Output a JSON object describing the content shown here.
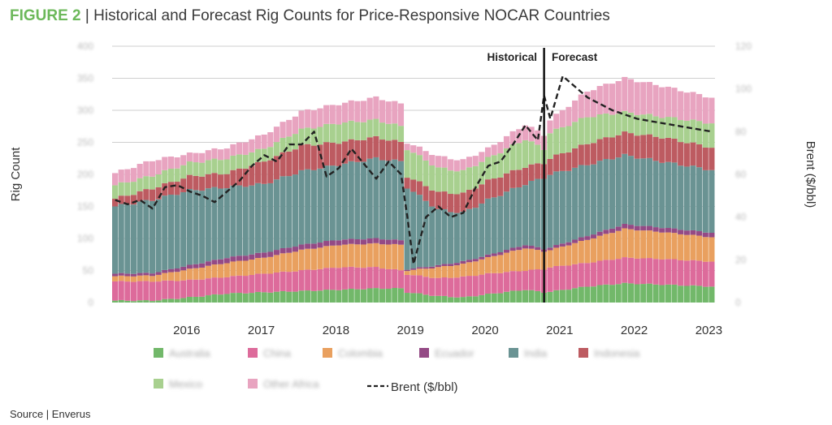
{
  "title": {
    "figure_label": "FIGURE 2",
    "separator": " | ",
    "text": "Historical and Forecast Rig Counts for Price-Responsive NOCAR Countries"
  },
  "source": "Source | Enverus",
  "chart_data": {
    "type": "bar",
    "stacked": true,
    "title": "Historical and Forecast Rig Counts for Price-Responsive NOCAR Countries",
    "xlabel": "",
    "ylabel": "Rig Count",
    "y2label": "Brent ($/bbl)",
    "ylim": [
      0,
      400
    ],
    "y2lim": [
      0,
      120
    ],
    "yticks": [
      0,
      50,
      100,
      150,
      200,
      250,
      300,
      350,
      400
    ],
    "y2ticks": [
      0,
      20,
      40,
      60,
      80,
      100,
      120
    ],
    "grid": true,
    "legend_position": "bottom",
    "x_tick_labels": [
      "2016",
      "2017",
      "2018",
      "2019",
      "2020",
      "2021",
      "2022",
      "2023"
    ],
    "period": {
      "start": "2015-07",
      "frequency": "monthly",
      "count": 97
    },
    "annotations": [
      {
        "text": "Historical",
        "side": "left-of-divider"
      },
      {
        "text": "Forecast",
        "side": "right-of-divider"
      }
    ],
    "divider_month_index": 69,
    "series": [
      {
        "name": "Australia",
        "color": "#72b86a"
      },
      {
        "name": "China",
        "color": "#dd6b9b"
      },
      {
        "name": "Colombia",
        "color": "#e9a05f"
      },
      {
        "name": "Ecuador",
        "color": "#944a85"
      },
      {
        "name": "India",
        "color": "#6a9393"
      },
      {
        "name": "Indonesia",
        "color": "#bd5b61"
      },
      {
        "name": "Mexico",
        "color": "#a8d08f"
      },
      {
        "name": "Other Africa",
        "color": "#e8a4c0"
      }
    ],
    "keypoints": {
      "comment": "cumulative stack tops (rig count) at selected month indices; values between are interpolated",
      "idx": [
        0,
        6,
        12,
        18,
        24,
        30,
        36,
        42,
        46,
        47,
        52,
        56,
        60,
        66,
        69,
        70,
        76,
        82,
        88,
        96
      ],
      "Australia": [
        3,
        3,
        8,
        14,
        16,
        18,
        20,
        22,
        22,
        16,
        10,
        8,
        13,
        20,
        16,
        17,
        25,
        30,
        28,
        25
      ],
      "China": [
        33,
        33,
        35,
        40,
        45,
        50,
        55,
        55,
        50,
        44,
        38,
        40,
        45,
        50,
        52,
        55,
        62,
        70,
        68,
        64
      ],
      "Colombia": [
        41,
        42,
        52,
        62,
        70,
        82,
        90,
        92,
        90,
        50,
        55,
        60,
        70,
        85,
        80,
        82,
        98,
        115,
        110,
        102
      ],
      "Ecuador": [
        45,
        46,
        58,
        70,
        78,
        90,
        98,
        100,
        97,
        52,
        58,
        64,
        74,
        90,
        84,
        86,
        104,
        122,
        117,
        109
      ],
      "India": [
        150,
        160,
        175,
        180,
        185,
        205,
        215,
        225,
        220,
        180,
        145,
        140,
        160,
        185,
        195,
        200,
        215,
        230,
        220,
        207
      ],
      "Indonesia": [
        162,
        178,
        197,
        202,
        220,
        245,
        250,
        258,
        250,
        197,
        172,
        170,
        190,
        212,
        218,
        225,
        248,
        265,
        258,
        242
      ],
      "Mexico": [
        183,
        198,
        218,
        225,
        240,
        270,
        280,
        285,
        275,
        240,
        210,
        205,
        225,
        255,
        240,
        265,
        290,
        297,
        290,
        280
      ],
      "Other Africa": [
        202,
        222,
        232,
        242,
        262,
        298,
        310,
        320,
        310,
        250,
        228,
        222,
        240,
        278,
        262,
        285,
        330,
        350,
        338,
        320
      ]
    },
    "brent": {
      "name": "Brent ($/bbl)",
      "style": "dashed",
      "idx": [
        0,
        2,
        4,
        6,
        8,
        10,
        12,
        14,
        16,
        18,
        20,
        22,
        24,
        26,
        28,
        30,
        32,
        34,
        36,
        38,
        40,
        42,
        44,
        46,
        47,
        48,
        50,
        52,
        54,
        56,
        58,
        60,
        62,
        64,
        66,
        68,
        69,
        70,
        72,
        76,
        80,
        84,
        88,
        92,
        96
      ],
      "values": [
        48,
        46,
        48,
        44,
        54,
        55,
        52,
        50,
        47,
        52,
        57,
        64,
        69,
        66,
        74,
        74,
        80,
        59,
        63,
        72,
        65,
        58,
        66,
        60,
        40,
        18,
        40,
        45,
        40,
        42,
        54,
        64,
        66,
        74,
        83,
        76,
        97,
        86,
        106,
        96,
        90,
        86,
        84,
        82,
        80
      ]
    }
  },
  "legend": {
    "items": [
      {
        "label": "Australia",
        "color": "#72b86a"
      },
      {
        "label": "China",
        "color": "#dd6b9b"
      },
      {
        "label": "Colombia",
        "color": "#e9a05f"
      },
      {
        "label": "Ecuador",
        "color": "#944a85"
      },
      {
        "label": "India",
        "color": "#6a9393"
      },
      {
        "label": "Indonesia",
        "color": "#bd5b61"
      },
      {
        "label": "Mexico",
        "color": "#a8d08f"
      },
      {
        "label": "Other Africa",
        "color": "#e8a4c0"
      }
    ],
    "brent_label": "Brent ($/bbl)"
  }
}
